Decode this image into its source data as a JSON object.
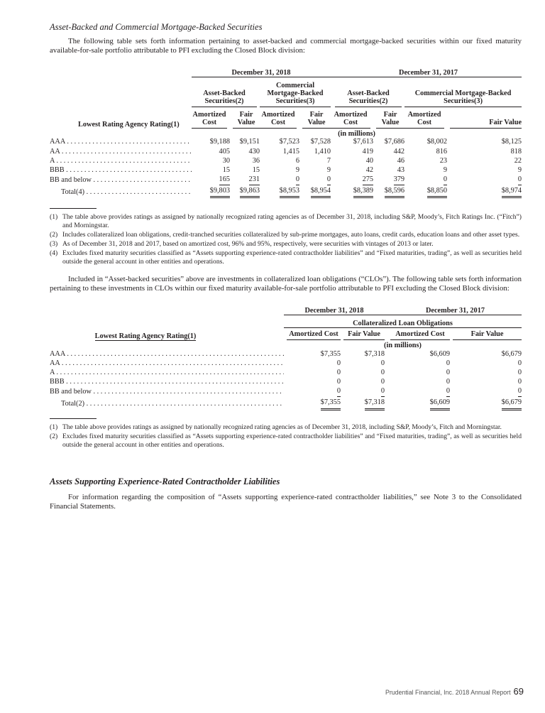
{
  "section1": {
    "title": "Asset-Backed and Commercial Mortgage-Backed Securities",
    "intro": "The following table sets forth information pertaining to asset-backed and commercial mortgage-backed securities within our fixed maturity available-for-sale portfolio attributable to PFI excluding the Closed Block division:",
    "table": {
      "periods": [
        "December 31, 2018",
        "December 31, 2017"
      ],
      "groups": [
        "Asset-Backed Securities(2)",
        "Commercial Mortgage-Backed Securities(3)",
        "Asset-Backed Securities(2)",
        "Commercial Mortgage-Backed Securities(3)"
      ],
      "row_header": "Lowest Rating Agency Rating(1)",
      "columns": [
        "Amortized Cost",
        "Fair Value",
        "Amortized Cost",
        "Fair Value",
        "Amortized Cost",
        "Fair Value",
        "Amortized Cost",
        "Fair Value"
      ],
      "units": "(in millions)",
      "rows": [
        {
          "label": "AAA",
          "values": [
            "$9,188",
            "$9,151",
            "$7,523",
            "$7,528",
            "$7,613",
            "$7,686",
            "$8,002",
            "$8,125"
          ]
        },
        {
          "label": "AA",
          "values": [
            "405",
            "430",
            "1,415",
            "1,410",
            "419",
            "442",
            "816",
            "818"
          ]
        },
        {
          "label": "A",
          "values": [
            "30",
            "36",
            "6",
            "7",
            "40",
            "46",
            "23",
            "22"
          ]
        },
        {
          "label": "BBB",
          "values": [
            "15",
            "15",
            "9",
            "9",
            "42",
            "43",
            "9",
            "9"
          ]
        },
        {
          "label": "BB and below",
          "values": [
            "165",
            "231",
            "0",
            "0",
            "275",
            "379",
            "0",
            "0"
          ]
        }
      ],
      "total": {
        "label": "Total(4)",
        "values": [
          "$9,803",
          "$9,863",
          "$8,953",
          "$8,954",
          "$8,389",
          "$8,596",
          "$8,850",
          "$8,974"
        ]
      }
    },
    "footnotes": [
      {
        "key": "(1)",
        "text": "The table above provides ratings as assigned by nationally recognized rating agencies as of December 31, 2018, including S&P, Moody’s, Fitch Ratings Inc. (“Fitch”) and Morningstar."
      },
      {
        "key": "(2)",
        "text": "Includes collateralized loan obligations, credit-tranched securities collateralized by sub-prime mortgages, auto loans, credit cards, education loans and other asset types."
      },
      {
        "key": "(3)",
        "text": "As of December 31, 2018 and 2017, based on amortized cost, 96% and 95%, respectively, were securities with vintages of 2013 or later."
      },
      {
        "key": "(4)",
        "text": "Excludes fixed maturity securities classified as “Assets supporting experience-rated contractholder liabilities” and “Fixed maturities, trading”, as well as securities held outside the general account in other entities and operations."
      }
    ]
  },
  "section2": {
    "intro": "Included in “Asset-backed securities” above are investments in collateralized loan obligations (“CLOs”). The following table sets forth information pertaining to these investments in CLOs within our fixed maturity available-for-sale portfolio attributable to PFI excluding the Closed Block division:",
    "table": {
      "periods": [
        "December 31, 2018",
        "December 31, 2017"
      ],
      "group": "Collateralized Loan Obligations",
      "row_header": "Lowest Rating Agency Rating(1)",
      "columns": [
        "Amortized Cost",
        "Fair Value",
        "Amortized Cost",
        "Fair Value"
      ],
      "units": "(in millions)",
      "rows": [
        {
          "label": "AAA",
          "values": [
            "$7,355",
            "$7,318",
            "$6,609",
            "$6,679"
          ]
        },
        {
          "label": "AA",
          "values": [
            "0",
            "0",
            "0",
            "0"
          ]
        },
        {
          "label": "A",
          "values": [
            "0",
            "0",
            "0",
            "0"
          ]
        },
        {
          "label": "BBB",
          "values": [
            "0",
            "0",
            "0",
            "0"
          ]
        },
        {
          "label": "BB and below",
          "values": [
            "0",
            "0",
            "0",
            "0"
          ]
        }
      ],
      "total": {
        "label": "Total(2)",
        "values": [
          "$7,355",
          "$7,318",
          "$6,609",
          "$6,679"
        ]
      }
    },
    "footnotes": [
      {
        "key": "(1)",
        "text": "The table above provides ratings as assigned by nationally recognized rating agencies as of December 31, 2018, including S&P, Moody’s, Fitch and Morningstar."
      },
      {
        "key": "(2)",
        "text": "Excludes fixed maturity securities classified as “Assets supporting experience-rated contractholder liabilities” and “Fixed maturities, trading”, as well as securities held outside the general account in other entities and operations."
      }
    ]
  },
  "section3": {
    "title": "Assets Supporting Experience-Rated Contractholder Liabilities",
    "text": "For information regarding the composition of “Assets supporting experience-rated contractholder liabilities,” see Note 3 to the Consolidated Financial Statements."
  },
  "footer": {
    "text": "Prudential Financial, Inc. 2018 Annual Report",
    "page": "69"
  }
}
